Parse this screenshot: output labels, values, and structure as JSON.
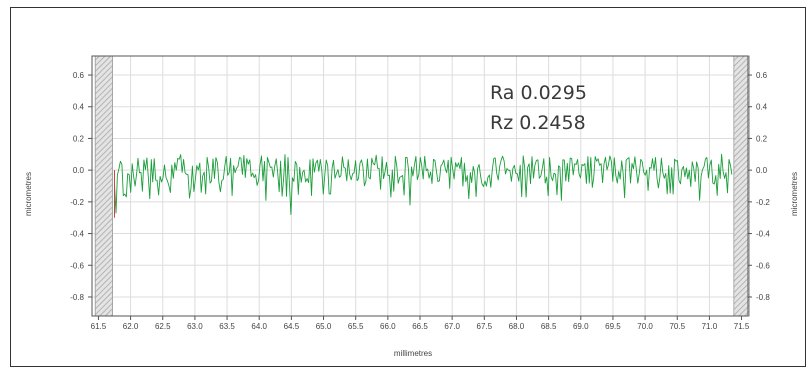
{
  "chart_data": {
    "type": "line",
    "title": "",
    "xlabel": "millimetres",
    "ylabel": "micrometres",
    "ylabel_right": "micrometres",
    "xlim": [
      61.4,
      71.6
    ],
    "ylim": [
      -0.92,
      0.72
    ],
    "x_ticks": [
      61.5,
      62.0,
      62.5,
      63.0,
      63.5,
      64.0,
      64.5,
      65.0,
      65.5,
      66.0,
      66.5,
      67.0,
      67.5,
      68.0,
      68.5,
      69.0,
      69.5,
      70.0,
      70.5,
      71.0,
      71.5
    ],
    "x_tick_labels": [
      "61.5",
      "62.0",
      "62.5",
      "63.0",
      "63.5",
      "64.0",
      "64.5",
      "65.0",
      "65.5",
      "66.0",
      "66.5",
      "67.0",
      "67.5",
      "68.0",
      "68.5",
      "69.0",
      "69.5",
      "70.0",
      "70.5",
      "71.0",
      "71.5"
    ],
    "y_ticks": [
      0.6,
      0.4,
      0.2,
      0.0,
      -0.2,
      -0.4,
      -0.6,
      -0.8
    ],
    "y_tick_labels": [
      "0.6",
      "0.4",
      "0.2",
      "0.0",
      "-0.2",
      "-0.4",
      "-0.6",
      "-0.8"
    ],
    "grid": true,
    "excluded_regions": [
      [
        61.45,
        61.72
      ],
      [
        71.38,
        71.62
      ]
    ],
    "annotations": [
      "Ra 0.0295",
      "Rz 0.2458"
    ],
    "series": [
      {
        "color": "#1a9e3a",
        "x_start": 61.75,
        "x_end": 71.35,
        "sample_count": 420,
        "baseline": 0.0,
        "band": [
          -0.08,
          0.08
        ],
        "peak_max": 0.1,
        "dips": [
          {
            "x": 61.78,
            "y": -0.27
          },
          {
            "x": 62.3,
            "y": -0.18
          },
          {
            "x": 63.1,
            "y": -0.14
          },
          {
            "x": 64.1,
            "y": -0.19
          },
          {
            "x": 64.5,
            "y": -0.28
          },
          {
            "x": 65.1,
            "y": -0.15
          },
          {
            "x": 66.05,
            "y": -0.17
          },
          {
            "x": 66.35,
            "y": -0.22
          },
          {
            "x": 67.25,
            "y": -0.18
          },
          {
            "x": 68.15,
            "y": -0.17
          },
          {
            "x": 68.7,
            "y": -0.19
          },
          {
            "x": 70.35,
            "y": -0.15
          },
          {
            "x": 70.85,
            "y": -0.19
          }
        ]
      }
    ]
  },
  "colors": {
    "grid": "#dddddd",
    "axis": "#555555",
    "hatch": "#a8a8a8",
    "hatch_bg": "#e4e4e4",
    "start_marker": "#d04040"
  }
}
